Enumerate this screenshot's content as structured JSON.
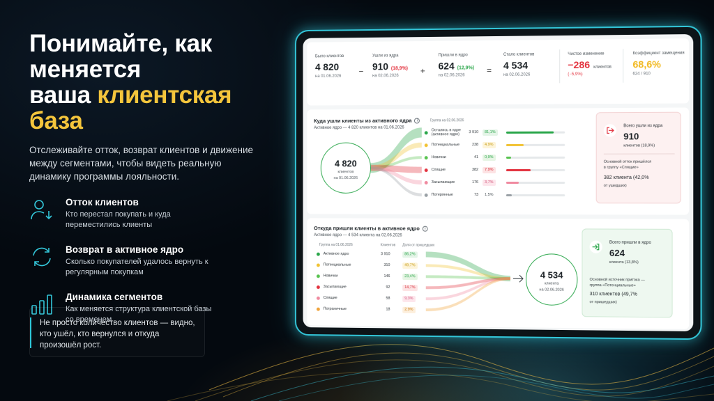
{
  "headline": {
    "line1": "Понимайте, как меняется",
    "line2_plain": "ваша ",
    "line2_accent": "клиентская",
    "line3_accent": "база"
  },
  "lead": "Отслеживайте отток, возврат клиентов и движение между сегментами, чтобы видеть реальную динамику программы лояльности.",
  "features": [
    {
      "icon": "user-down-icon",
      "title": "Отток клиентов",
      "text": "Кто перестал покупать и куда переместились клиенты"
    },
    {
      "icon": "refresh-icon",
      "title": "Возврат в активное ядро",
      "text": "Сколько покупателей удалось вернуть к регулярным покупкам"
    },
    {
      "icon": "bar-chart-icon",
      "title": "Динамика сегментов",
      "text": "Как меняется структура клиентской базы со временем"
    }
  ],
  "note": "Не просто количество клиентов — видно, кто ушёл, кто вернулся и откуда произошёл рост.",
  "stats": {
    "was": {
      "label": "Было клиентов",
      "value": "4 820",
      "date": "на 01.06.2026"
    },
    "op1": "−",
    "left": {
      "label": "Ушли из ядра",
      "value": "910",
      "pct": "(18,9%)",
      "date": "на 02.06.2026"
    },
    "op2": "+",
    "came": {
      "label": "Пришли в ядро",
      "value": "624",
      "pct": "(12,9%)",
      "date": "на 02.06.2026"
    },
    "op3": "=",
    "now": {
      "label": "Стало клиентов",
      "value": "4 534",
      "date": "на 02.06.2026"
    },
    "net": {
      "label": "Чистое изменение",
      "value": "−286",
      "unit": "клиентов",
      "pct": "(−5,9%)"
    },
    "ratio": {
      "label": "Коэффициент замещения",
      "value": "68,6%",
      "sub": "624 / 910"
    }
  },
  "outflow": {
    "title": "Куда ушли клиенты из активного ядра",
    "sub": "Активное ядро — 4 820 клиентов на 01.06.2026",
    "group_hdr": "Группа на 02.06.2026",
    "circle": {
      "value": "4 820",
      "label1": "клиентов",
      "label2": "на 01.06.2026"
    },
    "rows": [
      {
        "name": "Остались в ядре",
        "name2": "(активное ядро)",
        "count": "3 910",
        "pct": "81,1%",
        "share": 0.811,
        "color": "#2aa64a",
        "pill_bg": "#e4f4e7",
        "pill_fg": "#2aa64a"
      },
      {
        "name": "Потенциальные",
        "count": "238",
        "pct": "4,9%",
        "share": 0.3,
        "color": "#f1c232",
        "pill_bg": "#fdf4d9",
        "pill_fg": "#c79a10"
      },
      {
        "name": "Новички",
        "count": "41",
        "pct": "0,9%",
        "share": 0.08,
        "color": "#58c34f",
        "pill_bg": "#e6f5e4",
        "pill_fg": "#2aa64a"
      },
      {
        "name": "Спящие",
        "count": "382",
        "pct": "7,9%",
        "share": 0.42,
        "color": "#e3333f",
        "pill_bg": "#fde3e4",
        "pill_fg": "#d62d38"
      },
      {
        "name": "Засыпающие",
        "count": "176",
        "pct": "3,7%",
        "share": 0.22,
        "color": "#f08aa0",
        "pill_bg": "#fde6ec",
        "pill_fg": "#d2557a"
      },
      {
        "name": "Потерянные",
        "count": "73",
        "pct": "1,5%",
        "share": 0.1,
        "color": "#9aa1a6",
        "pill_bg": "#ffffff",
        "pill_fg": "#4a5258"
      }
    ],
    "card": {
      "label": "Всего ушли из ядра",
      "value": "910",
      "sub": "клиентов (18,9%)",
      "txt1": "Основной отток пришёлся",
      "txt2": "в группу «Спящие»",
      "strong": "382 клиента (42,0%",
      "strong2": "от ушедших)"
    }
  },
  "inflow": {
    "title": "Откуда пришли клиенты в активное ядро",
    "sub": "Активное ядро — 4 534 клиента на 02.06.2026",
    "hdr_group": "Группа на 01.06.2026",
    "hdr_clients": "Клиентов",
    "hdr_share": "Доля от пришедших",
    "circle": {
      "value": "4 534",
      "label1": "клиента",
      "label2": "на 02.06.2026"
    },
    "rows": [
      {
        "name": "Активное ядро",
        "count": "3 910",
        "pct": "86,2%",
        "color": "#2aa64a",
        "pill_bg": "#e4f4e7",
        "pill_fg": "#2aa64a"
      },
      {
        "name": "Потенциальные",
        "count": "310",
        "pct": "49,7%",
        "color": "#f1c232",
        "pill_bg": "#fdf4d9",
        "pill_fg": "#c79a10"
      },
      {
        "name": "Новички",
        "count": "146",
        "pct": "23,4%",
        "color": "#58c34f",
        "pill_bg": "#e6f5e4",
        "pill_fg": "#2aa64a"
      },
      {
        "name": "Засыпающие",
        "count": "92",
        "pct": "14,7%",
        "color": "#e3333f",
        "pill_bg": "#fde3e4",
        "pill_fg": "#d62d38"
      },
      {
        "name": "Спящие",
        "count": "58",
        "pct": "9,3%",
        "color": "#f08aa0",
        "pill_bg": "#fde6ec",
        "pill_fg": "#d2557a"
      },
      {
        "name": "Пограничные",
        "count": "18",
        "pct": "2,9%",
        "color": "#f0a33a",
        "pill_bg": "#fdefdc",
        "pill_fg": "#c97a12"
      }
    ],
    "card": {
      "label": "Всего пришли в ядро",
      "value": "624",
      "sub": "клиента (13,8%)",
      "txt1": "Основной источник притока —",
      "txt2": "группа «Потенциальные»",
      "strong": "310 клиентов (49,7%",
      "strong2": "от пришедших)"
    }
  }
}
